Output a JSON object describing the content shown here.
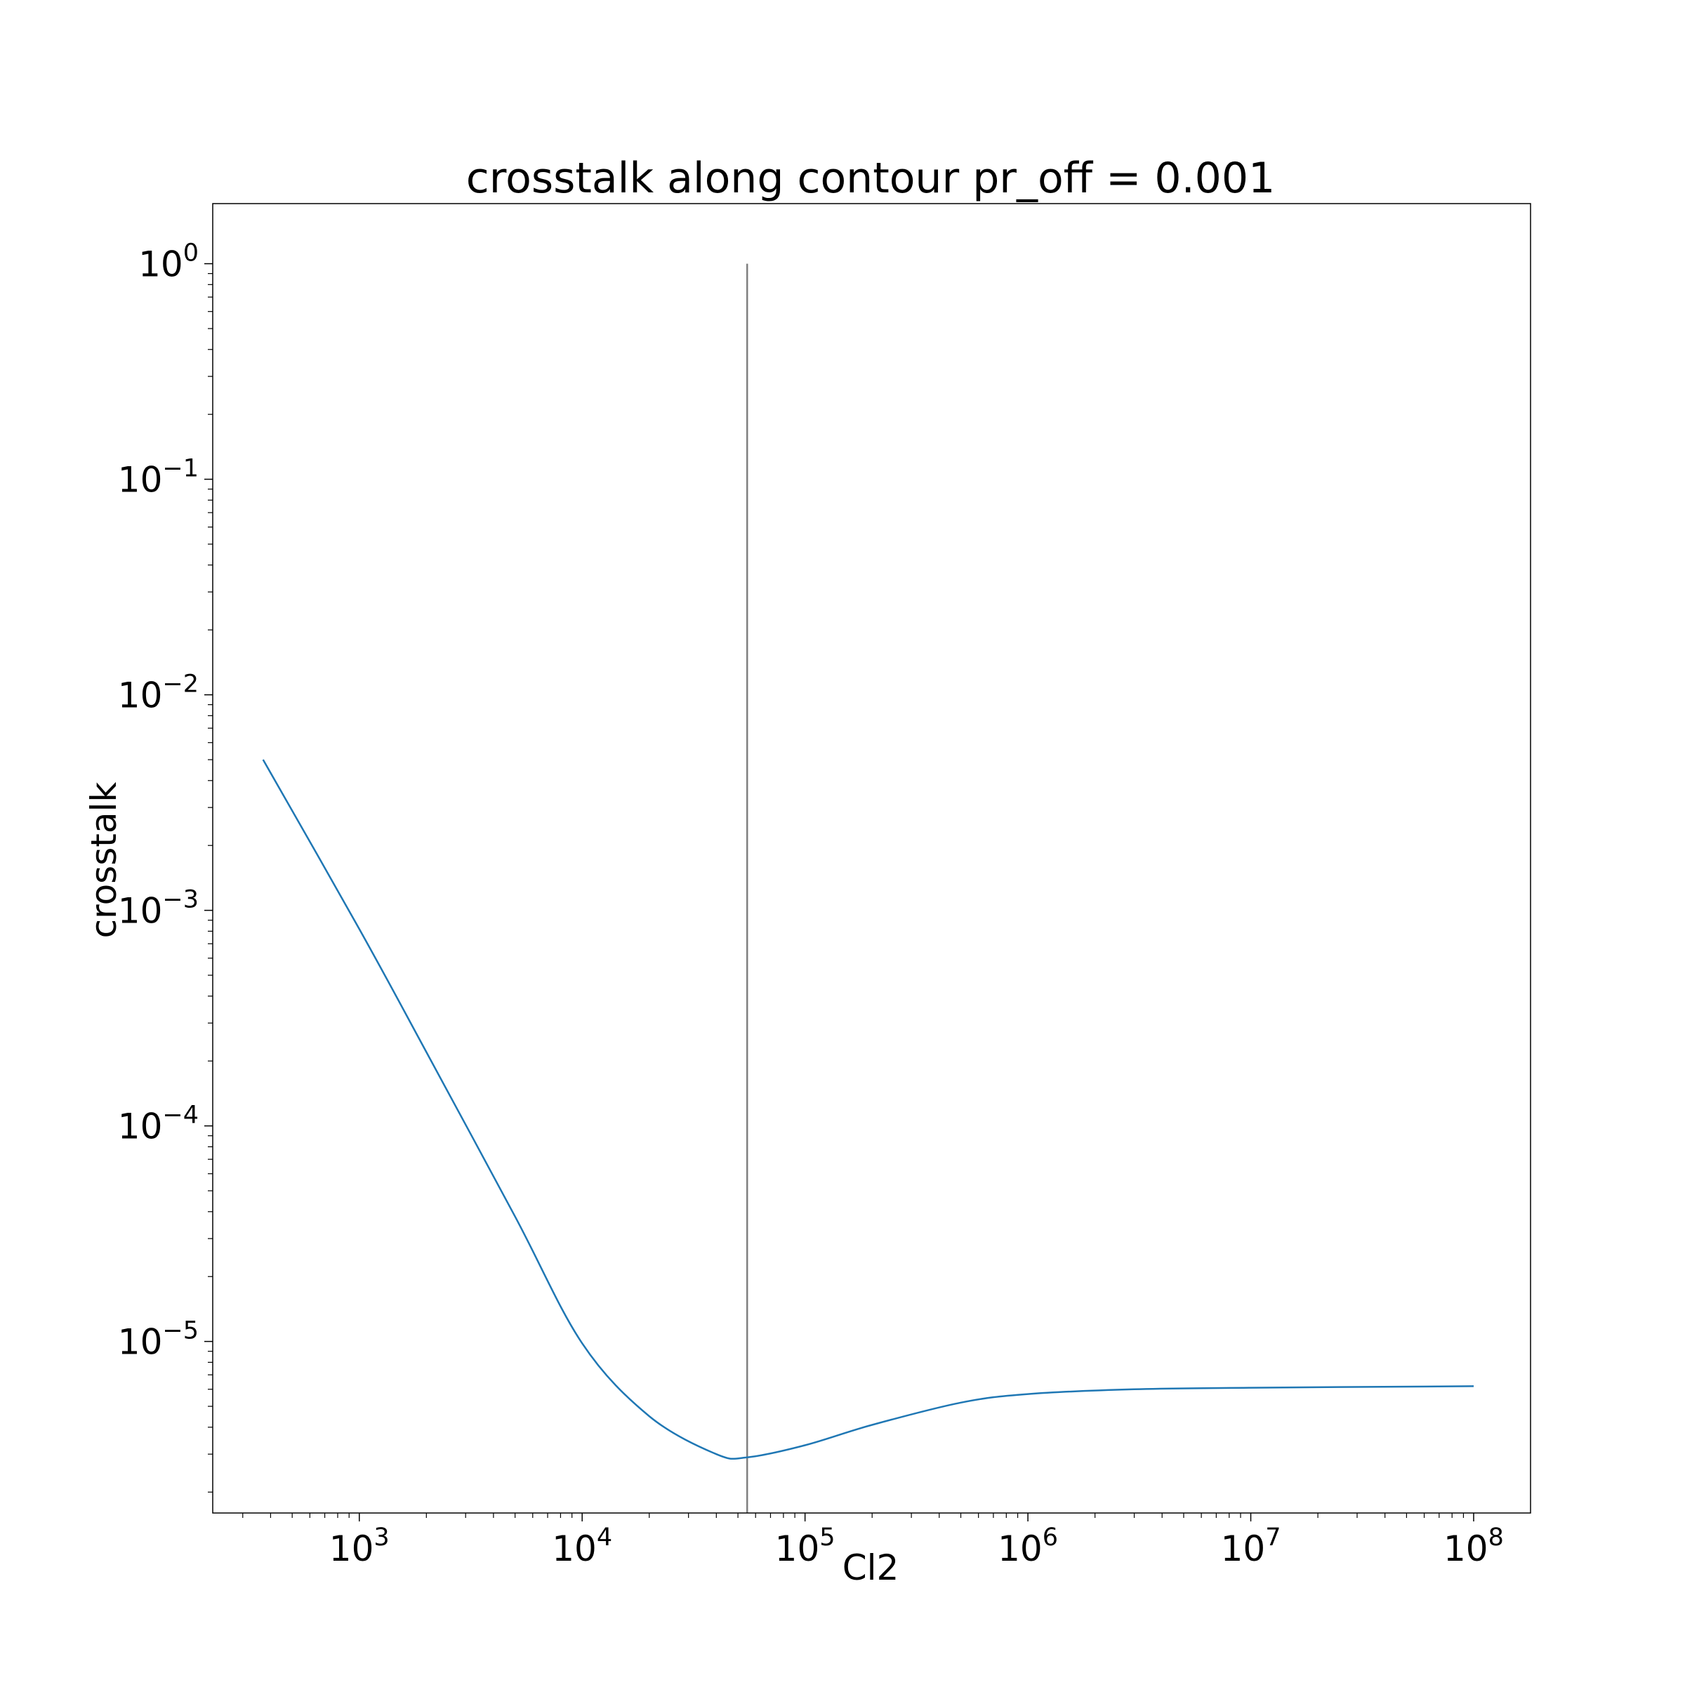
{
  "chart_data": {
    "type": "line",
    "title": "crosstalk along contour pr_off = 0.001",
    "xlabel": "Cl2",
    "ylabel": "crosstalk",
    "xscale": "log",
    "yscale": "log",
    "xlim": [
      220,
      180000000
    ],
    "ylim": [
      1.6e-06,
      1.9
    ],
    "grid": false,
    "x_ticks": [
      {
        "base": "10",
        "exp": "3",
        "value": 1000
      },
      {
        "base": "10",
        "exp": "4",
        "value": 10000
      },
      {
        "base": "10",
        "exp": "5",
        "value": 100000
      },
      {
        "base": "10",
        "exp": "6",
        "value": 1000000
      },
      {
        "base": "10",
        "exp": "7",
        "value": 10000000
      },
      {
        "base": "10",
        "exp": "8",
        "value": 100000000
      }
    ],
    "y_ticks": [
      {
        "base": "10",
        "exp": "0",
        "value": 1
      },
      {
        "base": "10",
        "exp": "−1",
        "value": 0.1
      },
      {
        "base": "10",
        "exp": "−2",
        "value": 0.01
      },
      {
        "base": "10",
        "exp": "−3",
        "value": 0.001
      },
      {
        "base": "10",
        "exp": "−4",
        "value": 0.0001
      },
      {
        "base": "10",
        "exp": "−5",
        "value": 1e-05
      }
    ],
    "series": [
      {
        "color": "#1f77b4",
        "x": [
          370,
          1000,
          2000,
          5000,
          10000,
          20000,
          40000,
          55000,
          100000,
          200000,
          500000,
          1000000,
          3000000,
          10000000,
          100000000
        ],
        "y": [
          0.005,
          0.00082,
          0.00022,
          3.8e-05,
          9.8e-06,
          4.5e-06,
          3e-06,
          2.9e-06,
          3.3e-06,
          4.1e-06,
          5.2e-06,
          5.7e-06,
          6e-06,
          6.1e-06,
          6.2e-06
        ]
      }
    ],
    "vline": {
      "x": 55000,
      "y_top": 1,
      "color": "#7f7f7f"
    }
  }
}
